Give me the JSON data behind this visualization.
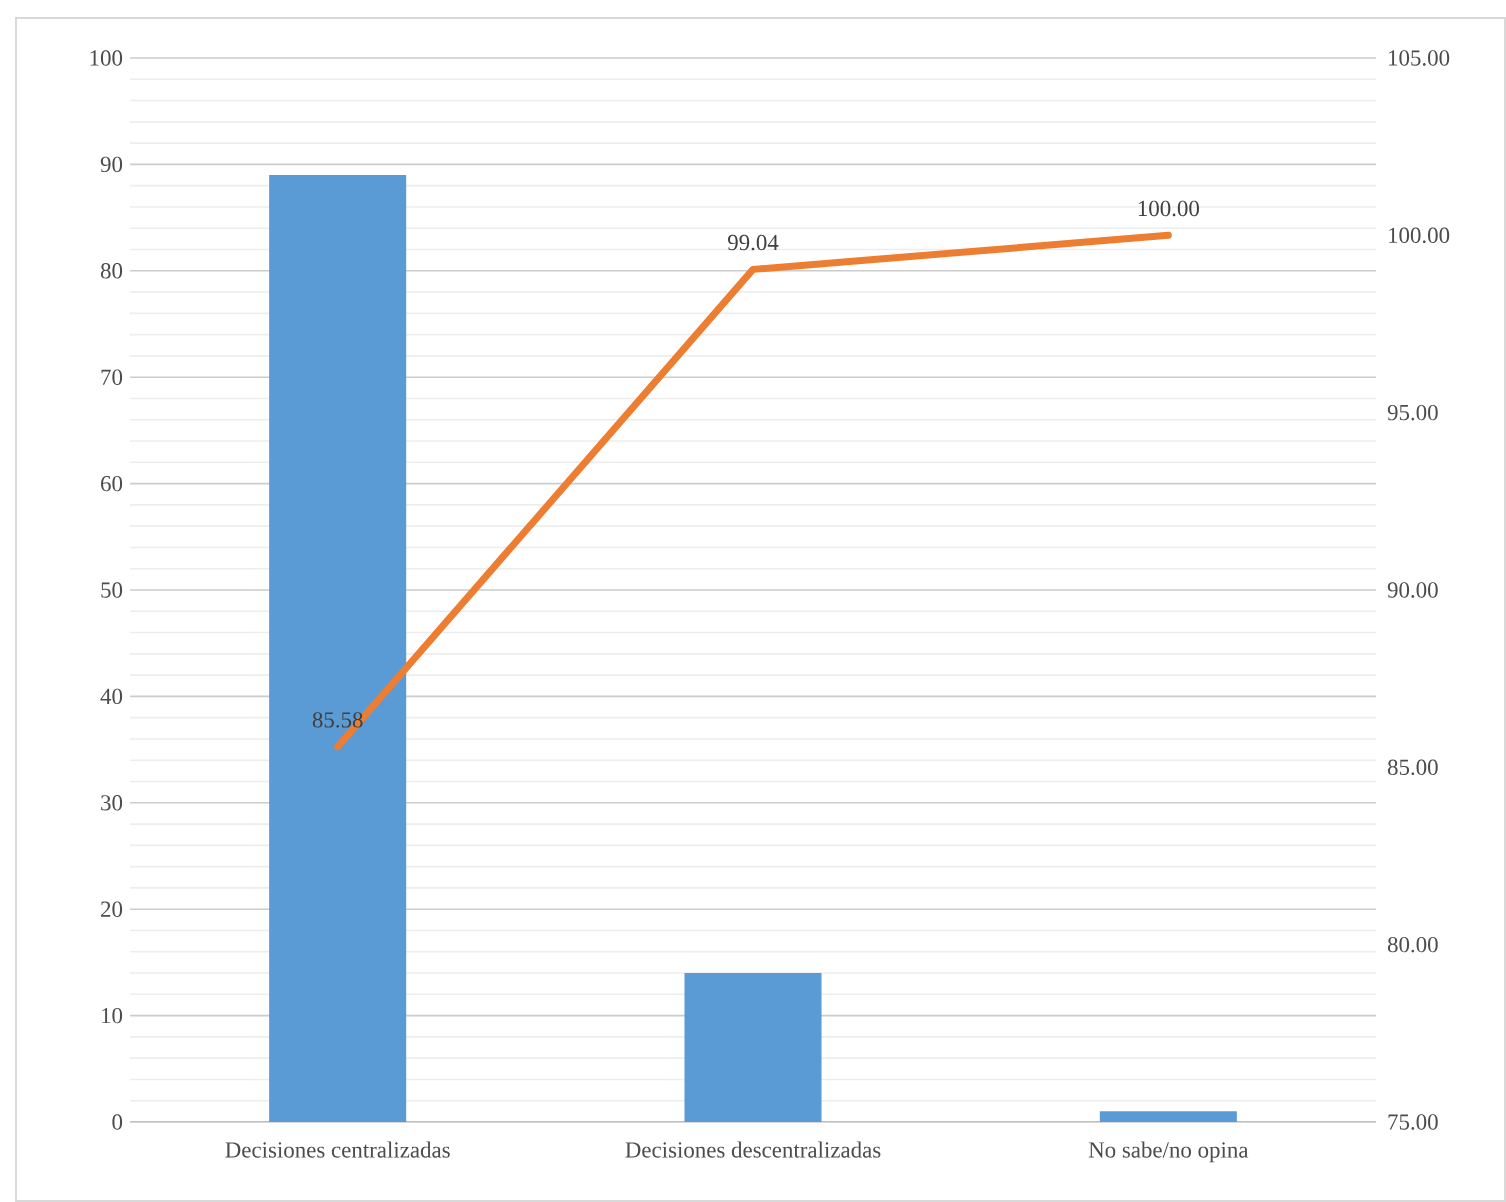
{
  "chart_data": {
    "type": "bar",
    "categories": [
      "Decisiones centralizadas",
      "Decisiones descentralizadas",
      "No sabe/no opina"
    ],
    "series": [
      {
        "color": "#5b9bd5",
        "values": [
          89,
          14,
          1
        ]
      },
      {
        "type": "line",
        "axis": "y2",
        "color": "#ed7d31",
        "values": [
          85.58,
          99.04,
          100.0
        ],
        "value_labels": [
          "85.58",
          "99.04",
          "100.00"
        ]
      }
    ],
    "ylim": [
      0,
      100
    ],
    "yticks": [
      0,
      10,
      20,
      30,
      40,
      50,
      60,
      70,
      80,
      90,
      100
    ],
    "y2lim": [
      75,
      105
    ],
    "y2ticks": [
      {
        "value": 75,
        "label": "75.00"
      },
      {
        "value": 80,
        "label": "80.00"
      },
      {
        "value": 85,
        "label": "85.00"
      },
      {
        "value": 90,
        "label": "90.00"
      },
      {
        "value": 95,
        "label": "95.00"
      },
      {
        "value": 100,
        "label": "100.00"
      },
      {
        "value": 105,
        "label": "105.00"
      }
    ],
    "grid": "y",
    "marker": "none",
    "line_style": "solid"
  }
}
